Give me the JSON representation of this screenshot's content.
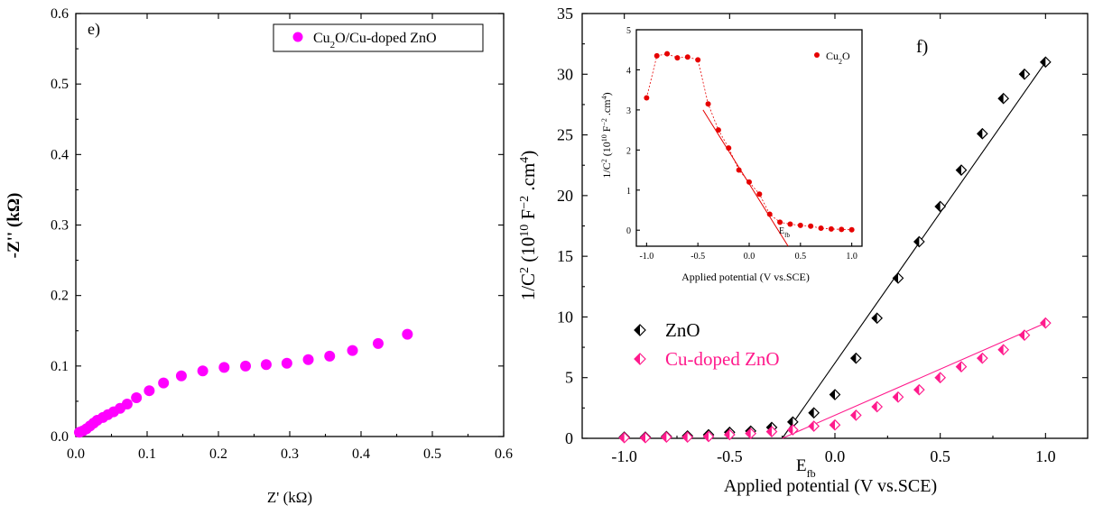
{
  "colors": {
    "magenta": "#ff00ff",
    "zno": "#000000",
    "cu_doped": "#ff1a8c",
    "inset_red": "#e60000"
  },
  "chart_data": [
    {
      "panel": "e)",
      "type": "scatter",
      "xlabel": "Z' (kΩ)",
      "ylabel": "-Z'' (kΩ)",
      "xlim": [
        0.0,
        0.6
      ],
      "ylim": [
        0.0,
        0.6
      ],
      "xticks": [
        "0.0",
        "0.1",
        "0.2",
        "0.3",
        "0.4",
        "0.5",
        "0.6"
      ],
      "yticks": [
        "0.0",
        "0.1",
        "0.2",
        "0.3",
        "0.4",
        "0.5",
        "0.6"
      ],
      "legend": "top-right",
      "series": [
        {
          "name": "Cu2O/Cu-doped ZnO",
          "x": [
            0.005,
            0.01,
            0.015,
            0.02,
            0.025,
            0.03,
            0.038,
            0.045,
            0.053,
            0.062,
            0.072,
            0.085,
            0.103,
            0.123,
            0.148,
            0.178,
            0.208,
            0.238,
            0.267,
            0.296,
            0.326,
            0.356,
            0.388,
            0.424,
            0.465
          ],
          "y": [
            0.006,
            0.008,
            0.011,
            0.015,
            0.019,
            0.023,
            0.027,
            0.031,
            0.035,
            0.04,
            0.046,
            0.055,
            0.065,
            0.076,
            0.086,
            0.093,
            0.098,
            0.1,
            0.102,
            0.104,
            0.109,
            0.114,
            0.122,
            0.132,
            0.145
          ]
        }
      ]
    },
    {
      "panel": "f)",
      "type": "scatter",
      "xlabel": "Applied potential (V vs.SCE)",
      "ylabel": "1/C² (10¹⁰ F⁻² .cm⁴)",
      "xlim": [
        -1.2,
        1.2
      ],
      "ylim": [
        0,
        35
      ],
      "xticks": [
        "-1.0",
        "-0.5",
        "0.0",
        "0.5",
        "1.0"
      ],
      "yticks": [
        "0",
        "5",
        "10",
        "15",
        "20",
        "25",
        "30",
        "35"
      ],
      "annotation": "Efb",
      "legend": "middle-left",
      "series": [
        {
          "name": "ZnO",
          "x": [
            -1.0,
            -0.9,
            -0.8,
            -0.7,
            -0.6,
            -0.5,
            -0.4,
            -0.3,
            -0.2,
            -0.1,
            0.0,
            0.1,
            0.2,
            0.3,
            0.4,
            0.5,
            0.6,
            0.7,
            0.8,
            0.9,
            1.0
          ],
          "y": [
            0.1,
            0.1,
            0.15,
            0.2,
            0.3,
            0.5,
            0.6,
            0.9,
            1.35,
            2.1,
            3.6,
            6.6,
            9.9,
            13.2,
            16.2,
            19.1,
            22.1,
            25.1,
            28.0,
            30.0,
            31.0
          ],
          "fit_line": {
            "x": [
              -0.25,
              1.0
            ],
            "y": [
              0.0,
              31.0
            ]
          }
        },
        {
          "name": "Cu-doped ZnO",
          "x": [
            -1.0,
            -0.9,
            -0.8,
            -0.7,
            -0.6,
            -0.5,
            -0.4,
            -0.3,
            -0.2,
            -0.1,
            0.0,
            0.1,
            0.2,
            0.3,
            0.4,
            0.5,
            0.6,
            0.7,
            0.8,
            0.9,
            1.0
          ],
          "y": [
            0.05,
            0.05,
            0.1,
            0.1,
            0.15,
            0.3,
            0.4,
            0.55,
            0.7,
            1.0,
            1.1,
            1.9,
            2.6,
            3.4,
            4.0,
            5.0,
            5.9,
            6.6,
            7.3,
            8.5,
            9.5
          ],
          "fit_line": {
            "x": [
              -0.25,
              1.0
            ],
            "y": [
              0.0,
              9.5
            ]
          }
        }
      ]
    },
    {
      "panel": "inset",
      "type": "scatter",
      "xlabel": "Applied potential (V vs.SCE)",
      "ylabel": "1/C² (10¹⁰ F⁻² .cm⁴)",
      "xlim": [
        -1.1,
        1.1
      ],
      "ylim": [
        -0.4,
        5
      ],
      "xticks": [
        "-1.0",
        "-0.5",
        "0.0",
        "0.5",
        "1.0"
      ],
      "yticks": [
        "0",
        "1",
        "2",
        "3",
        "4",
        "5"
      ],
      "annotation": "Efb",
      "legend": "top-right",
      "series": [
        {
          "name": "Cu2O",
          "x": [
            -1.0,
            -0.9,
            -0.8,
            -0.7,
            -0.6,
            -0.5,
            -0.4,
            -0.3,
            -0.2,
            -0.1,
            0.0,
            0.1,
            0.2,
            0.3,
            0.4,
            0.5,
            0.6,
            0.7,
            0.8,
            0.9,
            1.0
          ],
          "y": [
            3.3,
            4.35,
            4.4,
            4.3,
            4.32,
            4.25,
            3.15,
            2.5,
            2.05,
            1.5,
            1.2,
            0.9,
            0.4,
            0.2,
            0.15,
            0.12,
            0.1,
            0.05,
            0.03,
            0.02,
            0.01
          ],
          "fit_line": {
            "x": [
              -0.45,
              0.38
            ],
            "y": [
              3.0,
              -0.4
            ]
          }
        }
      ]
    }
  ]
}
